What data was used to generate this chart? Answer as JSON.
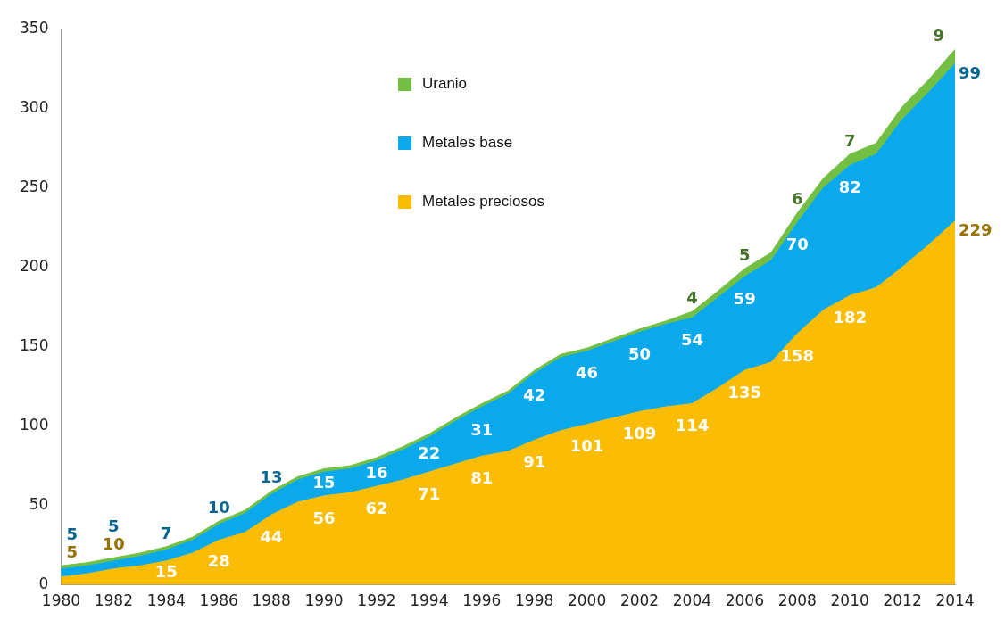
{
  "chart_data": {
    "type": "area",
    "stacked": true,
    "x": [
      1980,
      1981,
      1982,
      1983,
      1984,
      1985,
      1986,
      1987,
      1988,
      1989,
      1990,
      1991,
      1992,
      1993,
      1994,
      1995,
      1996,
      1997,
      1998,
      1999,
      2000,
      2001,
      2002,
      2003,
      2004,
      2005,
      2006,
      2007,
      2008,
      2009,
      2010,
      2011,
      2012,
      2013,
      2014
    ],
    "xlim": [
      1980,
      2014
    ],
    "xticks": [
      1980,
      1982,
      1984,
      1986,
      1988,
      1990,
      1992,
      1994,
      1996,
      1998,
      2000,
      2002,
      2004,
      2006,
      2008,
      2010,
      2012,
      2014
    ],
    "ylim": [
      0,
      350
    ],
    "yticks": [
      0,
      50,
      100,
      150,
      200,
      250,
      300,
      350
    ],
    "grid": false,
    "legend": "top",
    "series": [
      {
        "name": "Metales preciosos",
        "color": "#fbbc04",
        "values": [
          5,
          7,
          10,
          12,
          15,
          20,
          28,
          33,
          44,
          52,
          56,
          58,
          62,
          66,
          71,
          76,
          81,
          84,
          91,
          97,
          101,
          105,
          109,
          112,
          114,
          124,
          135,
          140,
          158,
          173,
          182,
          187,
          200,
          214,
          229
        ],
        "value_labels": [
          "5",
          null,
          "10",
          null,
          "15",
          null,
          "28",
          null,
          "44",
          null,
          "56",
          null,
          "62",
          null,
          "71",
          null,
          "81",
          null,
          "91",
          null,
          "101",
          null,
          "109",
          null,
          "114",
          null,
          "135",
          null,
          "158",
          null,
          "182",
          null,
          null,
          null,
          "229"
        ]
      },
      {
        "name": "Metales base",
        "color": "#0aa9ec",
        "values": [
          5,
          5,
          5,
          6,
          7,
          8,
          10,
          12,
          13,
          14,
          15,
          15,
          16,
          19,
          22,
          27,
          31,
          36,
          42,
          46,
          46,
          48,
          50,
          52,
          54,
          57,
          59,
          64,
          70,
          77,
          82,
          84,
          93,
          96,
          99
        ],
        "value_labels": [
          "5",
          null,
          "5",
          null,
          "7",
          null,
          "10",
          null,
          "13",
          null,
          "15",
          null,
          "16",
          null,
          "22",
          null,
          "31",
          null,
          "42",
          null,
          "46",
          null,
          "50",
          null,
          "54",
          null,
          "59",
          null,
          "70",
          null,
          "82",
          null,
          null,
          null,
          "99"
        ]
      },
      {
        "name": "Uranio",
        "color": "#72bf44",
        "values": [
          2,
          2,
          2,
          2,
          2,
          2,
          2,
          2,
          2,
          2,
          2,
          2,
          2,
          2,
          2,
          2,
          2,
          2,
          2,
          2,
          2,
          2,
          2,
          2,
          4,
          4,
          5,
          5,
          6,
          6,
          7,
          7,
          8,
          8,
          9
        ],
        "value_labels": [
          null,
          null,
          null,
          null,
          null,
          null,
          null,
          null,
          null,
          null,
          null,
          null,
          null,
          null,
          null,
          null,
          null,
          null,
          null,
          null,
          null,
          null,
          null,
          null,
          "4",
          null,
          "5",
          null,
          "6",
          null,
          "7",
          null,
          null,
          null,
          "9"
        ]
      }
    ]
  }
}
